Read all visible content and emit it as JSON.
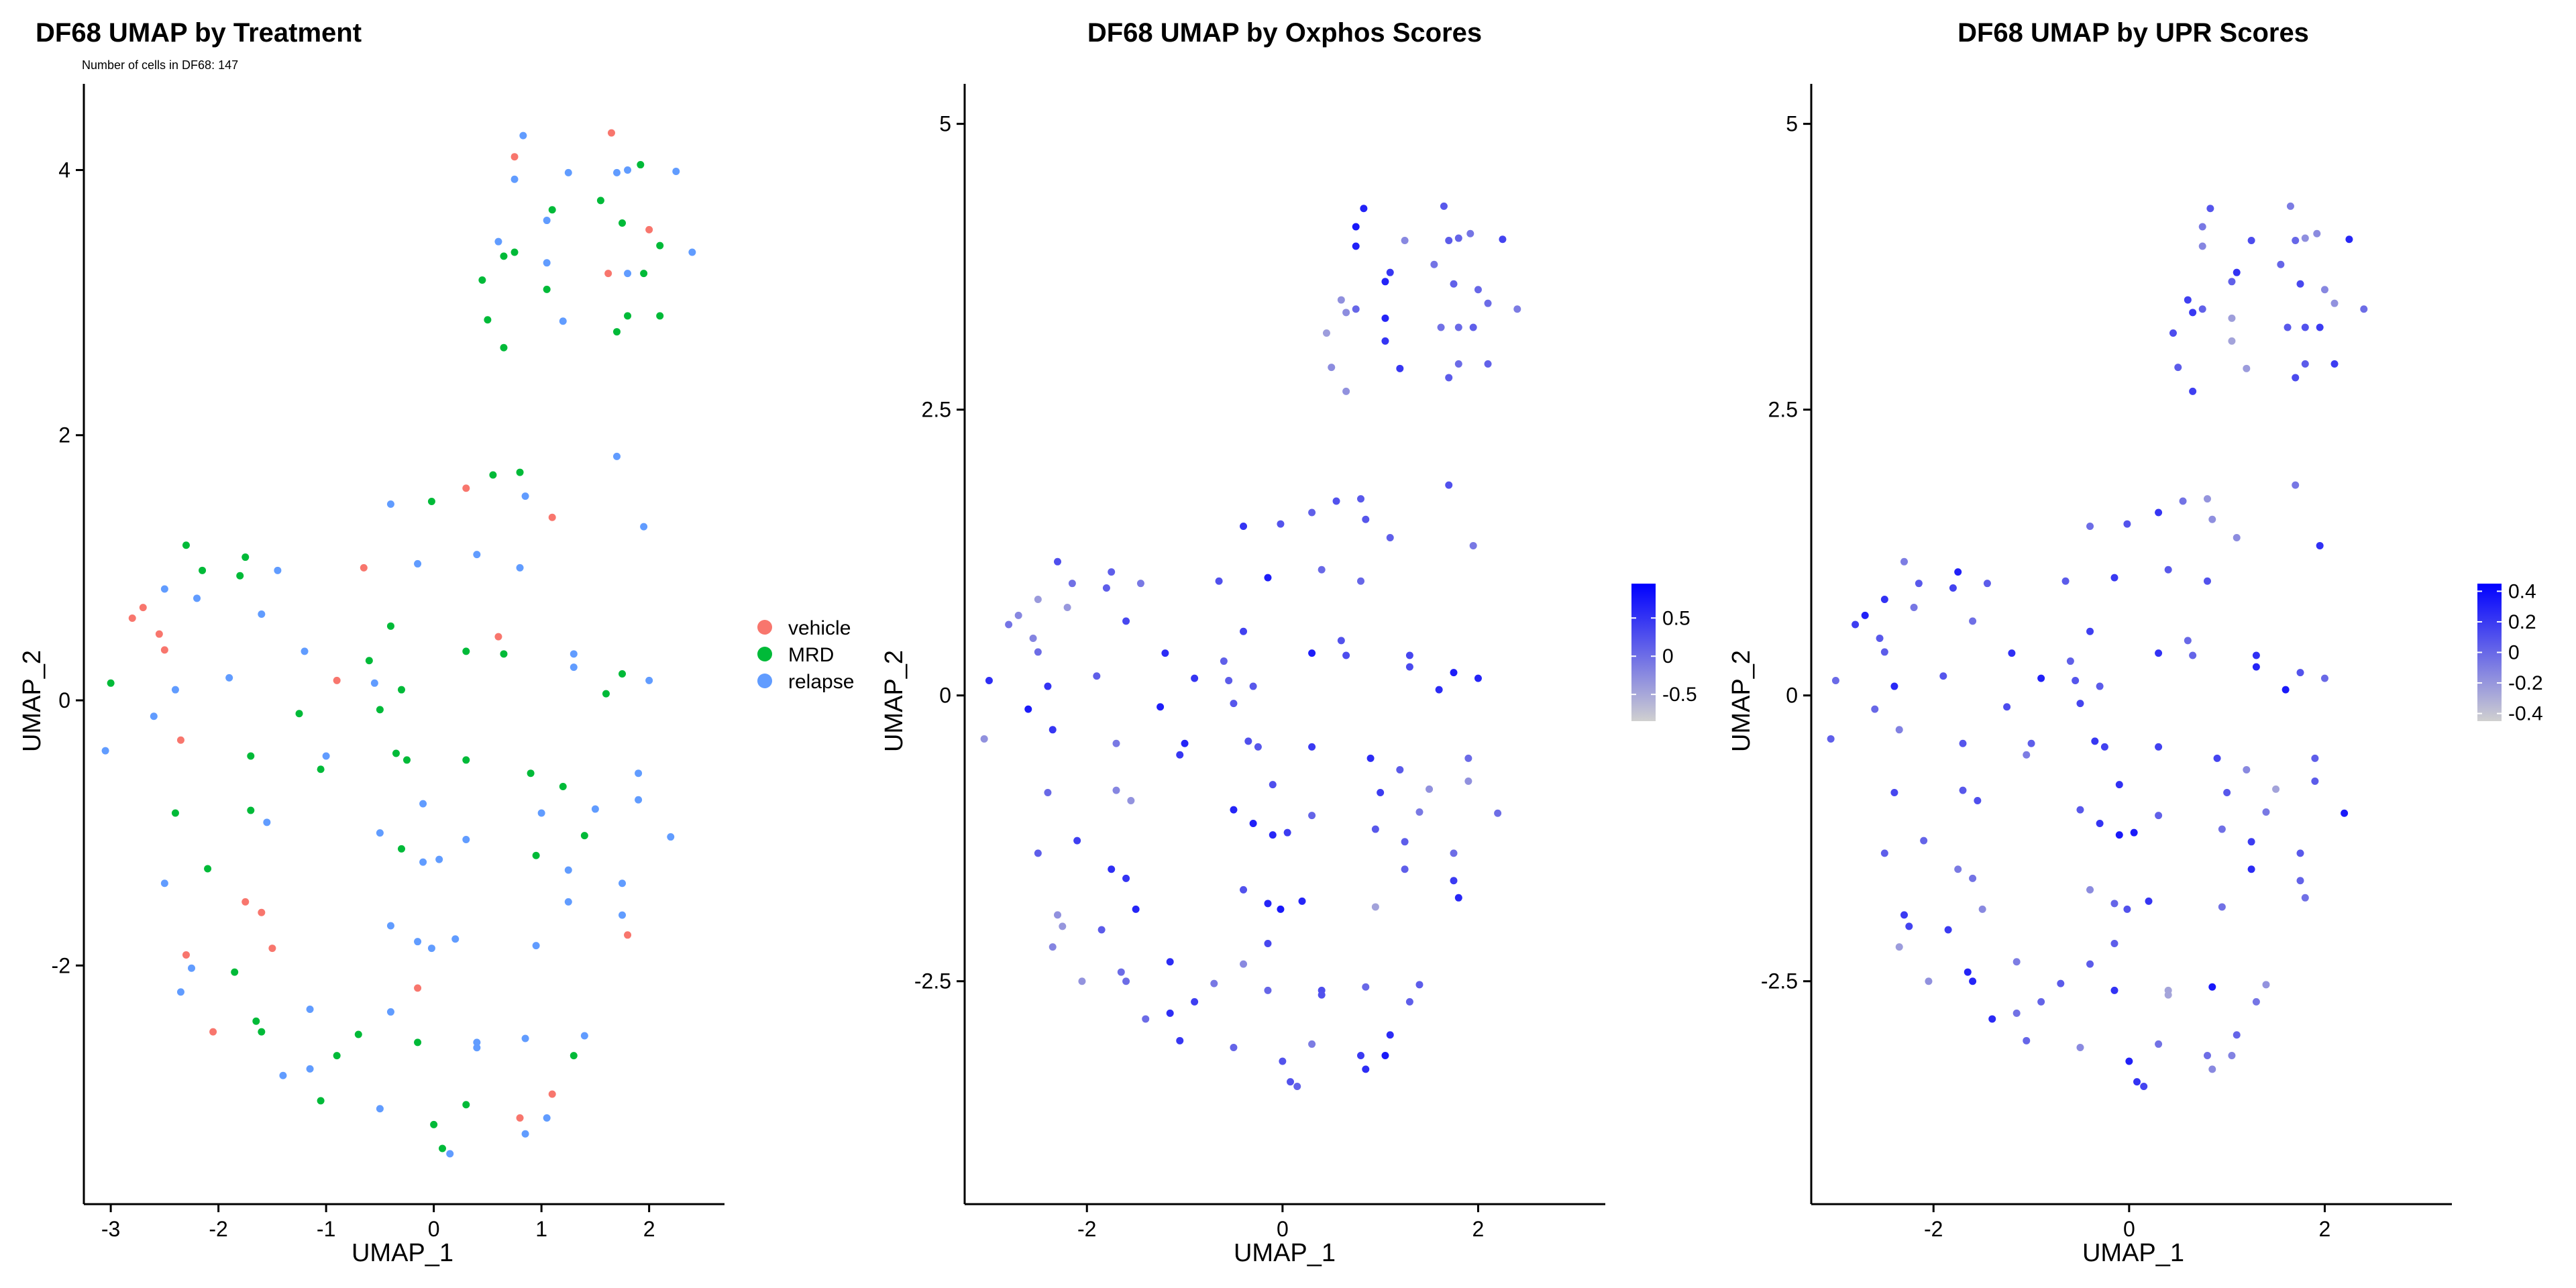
{
  "chart_data": [
    {
      "type": "scatter",
      "title": "DF68 UMAP by Treatment",
      "subtitle": "Number of cells in DF68: 147",
      "xlabel": "UMAP_1",
      "ylabel": "UMAP_2",
      "xlim": [
        -3.25,
        2.7
      ],
      "ylim": [
        -3.8,
        4.65
      ],
      "xticks": [
        -3,
        -2,
        -1,
        0,
        1,
        2
      ],
      "yticks": [
        -2,
        0,
        2,
        4
      ],
      "legend": {
        "placement": "right",
        "entries": [
          {
            "label": "vehicle",
            "color": "#F8766D"
          },
          {
            "label": "MRD",
            "color": "#00BA38"
          },
          {
            "label": "relapse",
            "color": "#619CFF"
          }
        ]
      },
      "series": [
        {
          "name": "vehicle",
          "color": "#F8766D",
          "points": [
            [
              0.75,
              4.1
            ],
            [
              1.65,
              4.28
            ],
            [
              2.0,
              3.55
            ],
            [
              1.62,
              3.22
            ],
            [
              0.3,
              1.6
            ],
            [
              1.1,
              1.38
            ],
            [
              -0.65,
              1.0
            ],
            [
              0.6,
              0.48
            ],
            [
              -2.8,
              0.62
            ],
            [
              -2.7,
              0.7
            ],
            [
              -2.55,
              0.5
            ],
            [
              -2.5,
              0.38
            ],
            [
              -2.35,
              -0.3
            ],
            [
              -0.9,
              0.15
            ],
            [
              -1.75,
              -1.52
            ],
            [
              -1.6,
              -1.6
            ],
            [
              -1.5,
              -1.87
            ],
            [
              -2.3,
              -1.92
            ],
            [
              -2.05,
              -2.5
            ],
            [
              1.8,
              -1.77
            ],
            [
              -0.15,
              -2.17
            ],
            [
              0.8,
              -3.15
            ],
            [
              1.1,
              -2.97
            ]
          ]
        },
        {
          "name": "MRD",
          "color": "#00BA38",
          "points": [
            [
              1.55,
              3.77
            ],
            [
              1.92,
              4.04
            ],
            [
              1.75,
              3.6
            ],
            [
              2.1,
              3.43
            ],
            [
              1.1,
              3.7
            ],
            [
              0.65,
              3.35
            ],
            [
              0.75,
              3.38
            ],
            [
              1.05,
              3.1
            ],
            [
              0.45,
              3.17
            ],
            [
              0.5,
              2.87
            ],
            [
              0.65,
              2.66
            ],
            [
              1.7,
              2.78
            ],
            [
              1.8,
              2.9
            ],
            [
              2.1,
              2.9
            ],
            [
              1.95,
              3.22
            ],
            [
              0.55,
              1.7
            ],
            [
              0.8,
              1.72
            ],
            [
              -0.02,
              1.5
            ],
            [
              -2.3,
              1.17
            ],
            [
              -2.15,
              0.98
            ],
            [
              -1.75,
              1.08
            ],
            [
              -1.8,
              0.94
            ],
            [
              -3.0,
              0.13
            ],
            [
              -0.4,
              0.56
            ],
            [
              -0.6,
              0.3
            ],
            [
              -0.3,
              0.08
            ],
            [
              0.3,
              0.37
            ],
            [
              0.65,
              0.35
            ],
            [
              -1.25,
              -0.1
            ],
            [
              -1.7,
              -0.42
            ],
            [
              -1.05,
              -0.52
            ],
            [
              -0.5,
              -0.07
            ],
            [
              -0.35,
              -0.4
            ],
            [
              -0.25,
              -0.45
            ],
            [
              0.3,
              -0.45
            ],
            [
              0.9,
              -0.55
            ],
            [
              1.2,
              -0.65
            ],
            [
              1.75,
              0.2
            ],
            [
              1.6,
              0.05
            ],
            [
              -2.4,
              -0.85
            ],
            [
              -1.7,
              -0.83
            ],
            [
              -2.1,
              -1.27
            ],
            [
              -0.3,
              -1.12
            ],
            [
              0.95,
              -1.17
            ],
            [
              1.4,
              -1.02
            ],
            [
              -1.85,
              -2.05
            ],
            [
              -1.65,
              -2.42
            ],
            [
              -1.6,
              -2.5
            ],
            [
              -0.7,
              -2.52
            ],
            [
              -0.9,
              -2.68
            ],
            [
              -0.15,
              -2.58
            ],
            [
              1.3,
              -2.68
            ],
            [
              -1.05,
              -3.02
            ],
            [
              0.3,
              -3.05
            ],
            [
              0.0,
              -3.2
            ],
            [
              0.08,
              -3.38
            ]
          ]
        },
        {
          "name": "relapse",
          "color": "#619CFF",
          "points": [
            [
              0.83,
              4.26
            ],
            [
              0.75,
              3.93
            ],
            [
              1.25,
              3.98
            ],
            [
              1.7,
              3.98
            ],
            [
              1.8,
              4.0
            ],
            [
              2.25,
              3.99
            ],
            [
              1.05,
              3.62
            ],
            [
              0.6,
              3.46
            ],
            [
              1.05,
              3.3
            ],
            [
              1.8,
              3.22
            ],
            [
              2.4,
              3.38
            ],
            [
              1.2,
              2.86
            ],
            [
              1.7,
              1.84
            ],
            [
              0.85,
              1.54
            ],
            [
              1.95,
              1.31
            ],
            [
              -0.4,
              1.48
            ],
            [
              -0.15,
              1.03
            ],
            [
              0.4,
              1.1
            ],
            [
              0.8,
              1.0
            ],
            [
              -2.5,
              0.84
            ],
            [
              -2.2,
              0.77
            ],
            [
              -1.6,
              0.65
            ],
            [
              -1.45,
              0.98
            ],
            [
              -3.05,
              -0.38
            ],
            [
              -2.6,
              -0.12
            ],
            [
              -2.4,
              0.08
            ],
            [
              -1.9,
              0.17
            ],
            [
              -1.2,
              0.37
            ],
            [
              -1.0,
              -0.42
            ],
            [
              -0.55,
              0.13
            ],
            [
              1.3,
              0.25
            ],
            [
              1.3,
              0.35
            ],
            [
              2.0,
              0.15
            ],
            [
              1.9,
              -0.55
            ],
            [
              1.9,
              -0.75
            ],
            [
              1.0,
              -0.85
            ],
            [
              1.5,
              -0.82
            ],
            [
              -0.1,
              -0.78
            ],
            [
              -2.5,
              -1.38
            ],
            [
              -1.55,
              -0.92
            ],
            [
              -0.5,
              -1.0
            ],
            [
              0.3,
              -1.05
            ],
            [
              -0.1,
              -1.22
            ],
            [
              0.05,
              -1.2
            ],
            [
              1.25,
              -1.28
            ],
            [
              1.75,
              -1.38
            ],
            [
              1.75,
              -1.62
            ],
            [
              1.25,
              -1.52
            ],
            [
              2.2,
              -1.03
            ],
            [
              -2.25,
              -2.02
            ],
            [
              -2.35,
              -2.2
            ],
            [
              -0.4,
              -1.7
            ],
            [
              -0.15,
              -1.82
            ],
            [
              -0.02,
              -1.87
            ],
            [
              0.2,
              -1.8
            ],
            [
              0.95,
              -1.85
            ],
            [
              -1.15,
              -2.33
            ],
            [
              -0.4,
              -2.35
            ],
            [
              -1.15,
              -2.78
            ],
            [
              -1.4,
              -2.83
            ],
            [
              0.4,
              -2.58
            ],
            [
              0.4,
              -2.62
            ],
            [
              0.85,
              -2.55
            ],
            [
              1.4,
              -2.53
            ],
            [
              -0.5,
              -3.08
            ],
            [
              0.15,
              -3.42
            ],
            [
              0.85,
              -3.27
            ],
            [
              1.05,
              -3.15
            ]
          ]
        }
      ]
    },
    {
      "type": "scatter",
      "title": "DF68 UMAP by Oxphos Scores",
      "xlabel": "UMAP_1",
      "ylabel": "UMAP_2",
      "xlim": [
        -3.25,
        3.3
      ],
      "ylim": [
        -4.45,
        5.35
      ],
      "xticks": [
        -2,
        0,
        2
      ],
      "yticks": [
        -2.5,
        0.0,
        2.5,
        5.0
      ],
      "colorscale": {
        "low": "#D0D0D0",
        "high": "#0000FF",
        "range": [
          -0.85,
          0.95
        ],
        "ticks": [
          0.5,
          0.0,
          -0.5
        ]
      }
    },
    {
      "type": "scatter",
      "title": "DF68 UMAP by UPR Scores",
      "xlabel": "UMAP_1",
      "ylabel": "UMAP_2",
      "xlim": [
        -3.25,
        3.3
      ],
      "ylim": [
        -4.45,
        5.35
      ],
      "xticks": [
        -2,
        0,
        2
      ],
      "yticks": [
        -2.5,
        0.0,
        2.5,
        5.0
      ],
      "colorscale": {
        "low": "#D0D0D0",
        "high": "#0000FF",
        "range": [
          -0.45,
          0.45
        ],
        "ticks": [
          0.4,
          0.2,
          0.0,
          -0.2,
          -0.4
        ]
      }
    }
  ]
}
